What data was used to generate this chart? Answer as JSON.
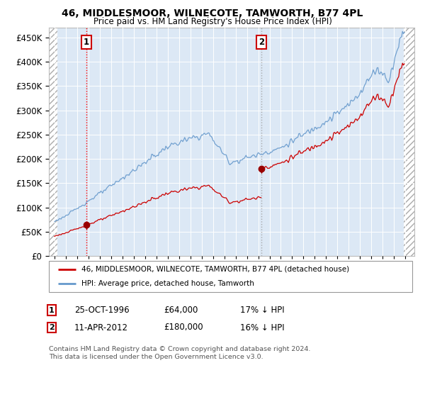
{
  "title": "46, MIDDLESMOOR, WILNECOTE, TAMWORTH, B77 4PL",
  "subtitle": "Price paid vs. HM Land Registry's House Price Index (HPI)",
  "legend_line1": "46, MIDDLESMOOR, WILNECOTE, TAMWORTH, B77 4PL (detached house)",
  "legend_line2": "HPI: Average price, detached house, Tamworth",
  "annotation1_date": "25-OCT-1996",
  "annotation1_price": "£64,000",
  "annotation1_hpi": "17% ↓ HPI",
  "annotation2_date": "11-APR-2012",
  "annotation2_price": "£180,000",
  "annotation2_hpi": "16% ↓ HPI",
  "footer": "Contains HM Land Registry data © Crown copyright and database right 2024.\nThis data is licensed under the Open Government Licence v3.0.",
  "plot_bg": "#dce8f5",
  "grid_color": "#ffffff",
  "red_line_color": "#cc0000",
  "blue_line_color": "#6699cc",
  "marker_color": "#990000",
  "vline1_color": "#ff0000",
  "vline2_color": "#999999",
  "box_color": "#cc0000",
  "ylim": [
    0,
    470000
  ],
  "yticks": [
    0,
    50000,
    100000,
    150000,
    200000,
    250000,
    300000,
    350000,
    400000,
    450000
  ],
  "sale1_x_year": 1996.82,
  "sale1_y": 64000,
  "sale2_x_year": 2012.28,
  "sale2_y": 180000,
  "xmin": 1993.5,
  "xmax": 2025.8,
  "hatch_left_end": 1994.25,
  "hatch_right_start": 2024.83
}
